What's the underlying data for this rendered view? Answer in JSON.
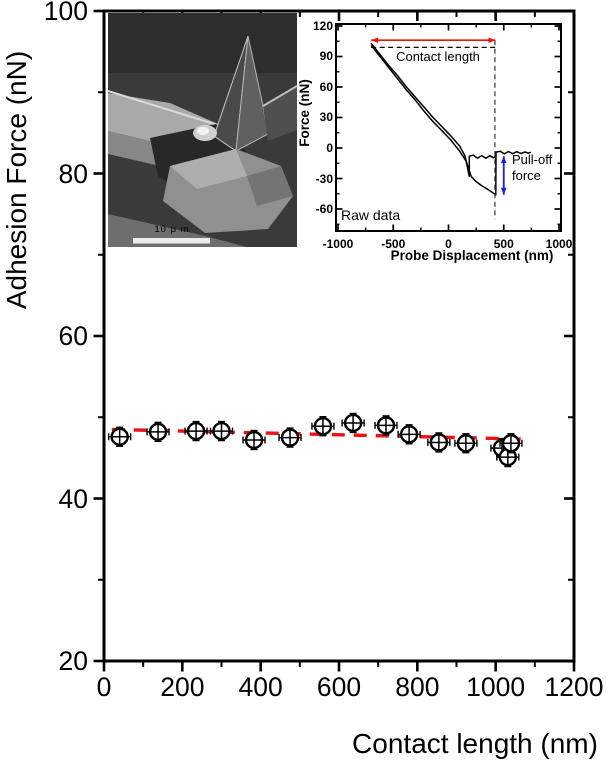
{
  "figure": {
    "background": "#ffffff"
  },
  "chart_data": [
    {
      "id": "main",
      "type": "scatter",
      "xlabel": "Contact length (nm)",
      "ylabel": "Adhesion Force (nN)",
      "xlim": [
        0,
        1200
      ],
      "ylim": [
        20,
        100
      ],
      "x_ticks": [
        0,
        200,
        400,
        600,
        800,
        1000,
        1200
      ],
      "y_ticks": [
        20,
        40,
        60,
        80,
        100
      ],
      "x_minor_ticks": [
        100,
        300,
        500,
        700,
        900,
        1100
      ],
      "y_minor_ticks": [
        30,
        50,
        70,
        90
      ],
      "grid": false,
      "legend": "none",
      "series": [
        {
          "name": "adhesion force measurements",
          "type": "scatter",
          "marker": "open-circle-with-error-bars",
          "color": "#000000",
          "x_error": 28,
          "y_error": 1.2,
          "points": [
            [
              40,
              47.6
            ],
            [
              138,
              48.2
            ],
            [
              235,
              48.3
            ],
            [
              300,
              48.3
            ],
            [
              383,
              47.2
            ],
            [
              475,
              47.5
            ],
            [
              559,
              48.9
            ],
            [
              636,
              49.3
            ],
            [
              720,
              49.0
            ],
            [
              779,
              47.9
            ],
            [
              855,
              46.9
            ],
            [
              924,
              46.8
            ],
            [
              1016,
              46.2
            ],
            [
              1031,
              45.1
            ],
            [
              1039,
              46.8
            ]
          ]
        },
        {
          "name": "linear fit",
          "type": "line",
          "style": "dashed",
          "color": "#ee1111",
          "points": [
            [
              20,
              48.5
            ],
            [
              1080,
              47.3
            ]
          ]
        }
      ]
    },
    {
      "id": "inset",
      "type": "line",
      "xlabel": "Probe Displacement (nm)",
      "ylabel": "Force (nN)",
      "xlim": [
        -1013,
        1022
      ],
      "ylim": [
        -82,
        121
      ],
      "x_ticks": [
        -1000,
        -500,
        0,
        500,
        1000
      ],
      "y_ticks": [
        -60,
        -30,
        0,
        30,
        60,
        90,
        120
      ],
      "x_minor_ticks": [
        -750,
        -250,
        250,
        750
      ],
      "y_minor_ticks": [
        -75,
        -45,
        -15,
        15,
        45,
        75,
        105
      ],
      "grid": false,
      "series": [
        {
          "name": "approach curve",
          "color": "#000000",
          "points": [
            [
              -700,
              103
            ],
            [
              -620,
              92
            ],
            [
              -540,
              81
            ],
            [
              -460,
              71
            ],
            [
              -380,
              60
            ],
            [
              -300,
              50
            ],
            [
              -220,
              40
            ],
            [
              -140,
              30
            ],
            [
              -60,
              21
            ],
            [
              20,
              12
            ],
            [
              100,
              2
            ],
            [
              150,
              -8
            ],
            [
              188,
              -28
            ],
            [
              188,
              -8
            ],
            [
              225,
              -7
            ],
            [
              262,
              -10
            ],
            [
              300,
              -7.5
            ],
            [
              338,
              -10
            ],
            [
              375,
              -7.5
            ],
            [
              405,
              -9.5
            ],
            [
              425,
              -8.5
            ]
          ]
        },
        {
          "name": "retract curve",
          "color": "#000000",
          "points": [
            [
              -700,
              101
            ],
            [
              -620,
              90
            ],
            [
              -540,
              79
            ],
            [
              -460,
              68
            ],
            [
              -380,
              57
            ],
            [
              -300,
              47
            ],
            [
              -220,
              36
            ],
            [
              -140,
              26
            ],
            [
              -60,
              17
            ],
            [
              20,
              8
            ],
            [
              100,
              -3
            ],
            [
              160,
              -13
            ],
            [
              205,
              -28
            ],
            [
              250,
              -33
            ],
            [
              300,
              -37
            ],
            [
              360,
              -41
            ],
            [
              428,
              -46
            ],
            [
              430,
              -4
            ],
            [
              468,
              -3.2
            ],
            [
              505,
              -5.8
            ],
            [
              542,
              -3.4
            ],
            [
              580,
              -5.6
            ],
            [
              618,
              -3.6
            ],
            [
              655,
              -5.4
            ],
            [
              692,
              -3.8
            ],
            [
              720,
              -5
            ],
            [
              745,
              -4.2
            ]
          ]
        }
      ],
      "annotations": {
        "raw_data_label": "Raw data",
        "contact_length_label": "Contact length",
        "pull_off_label": "Pull-off force",
        "contact_length_arrow": {
          "y": 106,
          "x1": -700,
          "x2": 425,
          "color": "#ee1111"
        },
        "contact_length_dash": {
          "y": 99,
          "x1": -700,
          "x2": 425,
          "color": "#000000"
        },
        "pull_off_arrow": {
          "x": 500,
          "y1": -8,
          "y2": -46,
          "color": "#1f1fd4"
        },
        "vertical_guide": {
          "x": 420,
          "y1": 106,
          "y2": -70,
          "color": "#333333"
        }
      }
    }
  ],
  "sem_inset": {
    "scale_bar_label": "10 μ m"
  }
}
